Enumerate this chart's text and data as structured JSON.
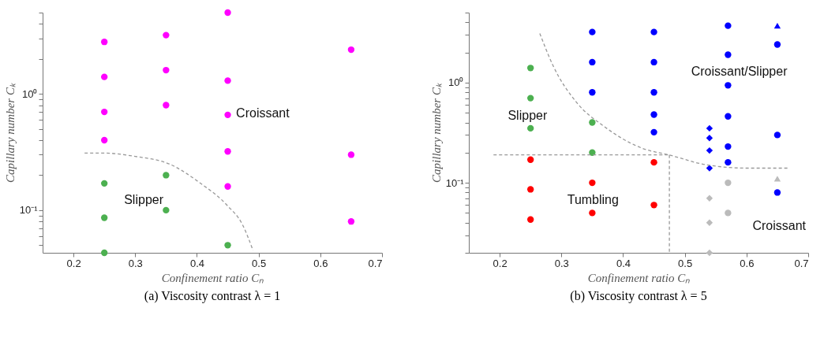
{
  "chart_data": [
    {
      "type": "scatter",
      "title": "(a) Viscosity contrast λ = 1",
      "xlabel": "Confinement ratio Cₙ",
      "ylabel": "Capillary number Cₖ",
      "log": "y",
      "grid": false,
      "marker": "circle",
      "xlim": [
        0.15,
        0.7
      ],
      "xticks": [
        0.2,
        0.3,
        0.4,
        0.5,
        0.6,
        0.7
      ],
      "ylim": [
        0.043,
        5.0
      ],
      "yticks": [
        {
          "value": 0.05,
          "label": null
        },
        {
          "value": 0.06,
          "label": null
        },
        {
          "value": 0.07,
          "label": null
        },
        {
          "value": 0.08,
          "label": null
        },
        {
          "value": 0.09,
          "label": null
        },
        {
          "value": 0.1,
          "label": "10⁻¹"
        },
        {
          "value": 0.2,
          "label": null
        },
        {
          "value": 0.3,
          "label": null
        },
        {
          "value": 0.4,
          "label": null
        },
        {
          "value": 0.5,
          "label": null
        },
        {
          "value": 0.6,
          "label": null
        },
        {
          "value": 0.7,
          "label": null
        },
        {
          "value": 0.8,
          "label": null
        },
        {
          "value": 0.9,
          "label": null
        },
        {
          "value": 1,
          "label": "10⁰"
        },
        {
          "value": 2,
          "label": null
        },
        {
          "value": 3,
          "label": null
        },
        {
          "value": 4,
          "label": null
        },
        {
          "value": 5,
          "label": null
        }
      ],
      "series": [
        {
          "color": "#ff00ff",
          "x": [
            0.25,
            0.25,
            0.25,
            0.25,
            0.35,
            0.35,
            0.35,
            0.45,
            0.45,
            0.45,
            0.45,
            0.45,
            0.65,
            0.65,
            0.65
          ],
          "values": [
            2.8,
            1.4,
            0.7,
            0.4,
            3.2,
            1.6,
            0.8,
            5.0,
            1.3,
            0.66,
            0.32,
            0.16,
            2.4,
            0.3,
            0.08
          ]
        },
        {
          "color": "#4cb050",
          "x": [
            0.25,
            0.25,
            0.25,
            0.35,
            0.35,
            0.45
          ],
          "values": [
            0.17,
            0.086,
            0.043,
            0.2,
            0.1,
            0.05
          ]
        },
        {
          "type": "line",
          "marker": "none",
          "line_style": "dashed",
          "color": "#999999",
          "x": [
            0.218,
            0.249,
            0.3,
            0.355,
            0.406,
            0.449,
            0.474,
            0.491
          ],
          "values": [
            0.31,
            0.31,
            0.29,
            0.25,
            0.17,
            0.11,
            0.075,
            0.045
          ]
        }
      ],
      "annotations": [
        "Croissant",
        "Slipper"
      ]
    },
    {
      "type": "scatter",
      "title": "(b)  Viscosity contrast λ = 5",
      "xlabel": "Confinement ratio Cₙ",
      "ylabel": "Capillary number Cₖ",
      "log": "y",
      "grid": false,
      "marker": "circle",
      "xlim": [
        0.15,
        0.7
      ],
      "xticks": [
        0.2,
        0.3,
        0.4,
        0.5,
        0.6,
        0.7
      ],
      "ylim": [
        0.02,
        5.0
      ],
      "yticks": [
        {
          "value": 0.02,
          "label": null
        },
        {
          "value": 0.03,
          "label": null
        },
        {
          "value": 0.04,
          "label": null
        },
        {
          "value": 0.05,
          "label": null
        },
        {
          "value": 0.06,
          "label": null
        },
        {
          "value": 0.07,
          "label": null
        },
        {
          "value": 0.08,
          "label": null
        },
        {
          "value": 0.09,
          "label": null
        },
        {
          "value": 0.1,
          "label": "10⁻¹"
        },
        {
          "value": 0.2,
          "label": null
        },
        {
          "value": 0.3,
          "label": null
        },
        {
          "value": 0.4,
          "label": null
        },
        {
          "value": 0.5,
          "label": null
        },
        {
          "value": 0.6,
          "label": null
        },
        {
          "value": 0.7,
          "label": null
        },
        {
          "value": 0.8,
          "label": null
        },
        {
          "value": 0.9,
          "label": null
        },
        {
          "value": 1,
          "label": "10⁰"
        },
        {
          "value": 2,
          "label": null
        },
        {
          "value": 3,
          "label": null
        },
        {
          "value": 4,
          "label": null
        },
        {
          "value": 5,
          "label": null
        }
      ],
      "series": [
        {
          "color": "#4cb050",
          "x": [
            0.25,
            0.25,
            0.25,
            0.35,
            0.35
          ],
          "values": [
            1.4,
            0.7,
            0.35,
            0.4,
            0.2
          ]
        },
        {
          "color": "#ff0000",
          "x": [
            0.25,
            0.25,
            0.25,
            0.35,
            0.35,
            0.45,
            0.45
          ],
          "values": [
            0.17,
            0.086,
            0.043,
            0.1,
            0.05,
            0.16,
            0.06
          ]
        },
        {
          "color": "#0000ff",
          "x": [
            0.35,
            0.35,
            0.35,
            0.45,
            0.45,
            0.45,
            0.45,
            0.45,
            0.57,
            0.57,
            0.57,
            0.57,
            0.57,
            0.57,
            0.65,
            0.65,
            0.65
          ],
          "values": [
            3.2,
            1.6,
            0.8,
            3.2,
            1.6,
            0.8,
            0.48,
            0.32,
            3.7,
            1.9,
            0.94,
            0.46,
            0.23,
            0.16,
            2.4,
            0.3,
            0.08
          ]
        },
        {
          "color": "#0000ff",
          "marker": "diamond",
          "x": [
            0.54,
            0.54,
            0.54,
            0.54
          ],
          "values": [
            0.35,
            0.28,
            0.21,
            0.14
          ]
        },
        {
          "color": "#0000ff",
          "marker": "triangle",
          "x": [
            0.65
          ],
          "values": [
            3.7
          ]
        },
        {
          "color": "#bbbbbb",
          "x": [
            0.57,
            0.57
          ],
          "values": [
            0.1,
            0.05
          ]
        },
        {
          "color": "#bbbbbb",
          "marker": "diamond",
          "x": [
            0.54,
            0.54,
            0.54
          ],
          "values": [
            0.07,
            0.04,
            0.02
          ]
        },
        {
          "color": "#bbbbbb",
          "marker": "triangle",
          "x": [
            0.65
          ],
          "values": [
            0.11
          ]
        },
        {
          "type": "line",
          "marker": "none",
          "line_style": "dashed",
          "color": "#999999",
          "x": [
            0.265,
            0.286,
            0.325,
            0.368,
            0.432,
            0.474,
            0.538,
            0.603,
            0.667
          ],
          "values": [
            3.1,
            1.5,
            0.63,
            0.37,
            0.22,
            0.19,
            0.15,
            0.14,
            0.14
          ]
        },
        {
          "type": "line",
          "marker": "none",
          "line_style": "dashed",
          "color": "#999999",
          "x": [
            0.19,
            0.475
          ],
          "values": [
            0.19,
            0.19
          ]
        },
        {
          "type": "line",
          "marker": "none",
          "line_style": "dashed",
          "color": "#999999",
          "x": [
            0.475,
            0.475
          ],
          "values": [
            0.19,
            0.02
          ]
        }
      ],
      "annotations": [
        "Croissant/Slipper",
        "Slipper",
        "Tumbling",
        "Croissant"
      ]
    }
  ]
}
